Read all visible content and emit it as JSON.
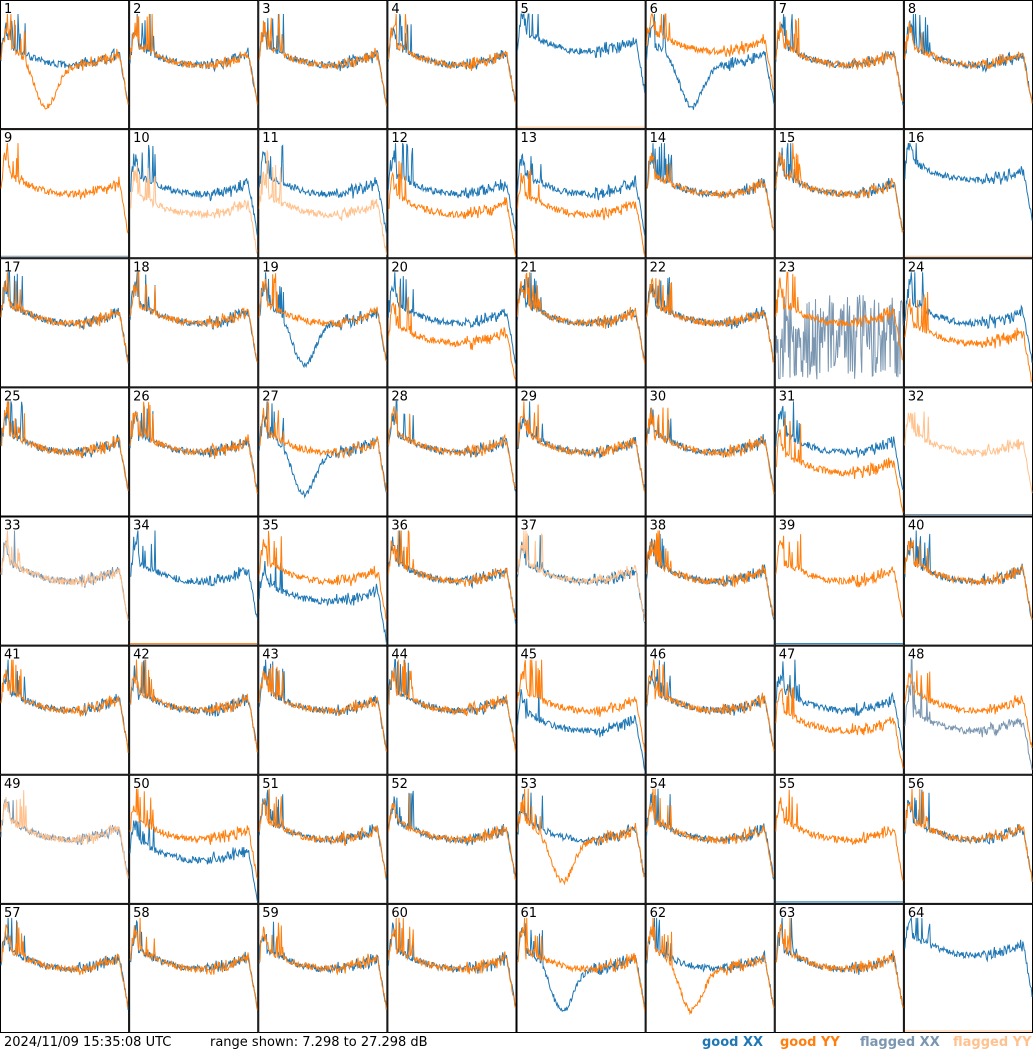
{
  "chart_data": {
    "type": "line",
    "description_units": "dB",
    "range": [
      7.298,
      27.298
    ],
    "colors": {
      "good_xx": "#1f77b4",
      "good_yy": "#ff7f0e",
      "flagged_xx": "#7a96b0",
      "flagged_yy": "#ffc28e"
    },
    "panels": [
      {
        "id": "1",
        "xx": "good",
        "yy": "good",
        "xx_shape": "standard",
        "yy_shape": "dip"
      },
      {
        "id": "2",
        "xx": "good",
        "yy": "good",
        "xx_shape": "standard",
        "yy_shape": "standard"
      },
      {
        "id": "3",
        "xx": "good",
        "yy": "good",
        "xx_shape": "standard",
        "yy_shape": "standard"
      },
      {
        "id": "4",
        "xx": "good",
        "yy": "good",
        "xx_shape": "standard",
        "yy_shape": "standard"
      },
      {
        "id": "5",
        "xx": "good",
        "yy": "flagged",
        "xx_shape": "high",
        "yy_shape": "dead"
      },
      {
        "id": "6",
        "xx": "good",
        "yy": "good",
        "xx_shape": "dip",
        "yy_shape": "high"
      },
      {
        "id": "7",
        "xx": "good",
        "yy": "good",
        "xx_shape": "standard",
        "yy_shape": "standard"
      },
      {
        "id": "8",
        "xx": "good",
        "yy": "good",
        "xx_shape": "standard",
        "yy_shape": "standard"
      },
      {
        "id": "9",
        "xx": "flagged",
        "yy": "good",
        "xx_shape": "dead",
        "yy_shape": "standard"
      },
      {
        "id": "10",
        "xx": "good",
        "yy": "flagged",
        "xx_shape": "standard",
        "yy_shape": "low"
      },
      {
        "id": "11",
        "xx": "good",
        "yy": "flagged",
        "xx_shape": "standard",
        "yy_shape": "low"
      },
      {
        "id": "12",
        "xx": "good",
        "yy": "good",
        "xx_shape": "standard",
        "yy_shape": "low"
      },
      {
        "id": "13",
        "xx": "good",
        "yy": "good",
        "xx_shape": "standard",
        "yy_shape": "low"
      },
      {
        "id": "14",
        "xx": "good",
        "yy": "good",
        "xx_shape": "standard",
        "yy_shape": "standard"
      },
      {
        "id": "15",
        "xx": "good",
        "yy": "good",
        "xx_shape": "standard",
        "yy_shape": "standard"
      },
      {
        "id": "16",
        "xx": "good",
        "yy": "flagged",
        "xx_shape": "high",
        "yy_shape": "dead"
      },
      {
        "id": "17",
        "xx": "good",
        "yy": "good",
        "xx_shape": "standard",
        "yy_shape": "standard"
      },
      {
        "id": "18",
        "xx": "good",
        "yy": "good",
        "xx_shape": "standard",
        "yy_shape": "standard"
      },
      {
        "id": "19",
        "xx": "good",
        "yy": "good",
        "xx_shape": "dip",
        "yy_shape": "standard"
      },
      {
        "id": "20",
        "xx": "good",
        "yy": "good",
        "xx_shape": "standard",
        "yy_shape": "low"
      },
      {
        "id": "21",
        "xx": "good",
        "yy": "good",
        "xx_shape": "standard",
        "yy_shape": "standard"
      },
      {
        "id": "22",
        "xx": "good",
        "yy": "good",
        "xx_shape": "standard",
        "yy_shape": "standard"
      },
      {
        "id": "23",
        "xx": "flagged",
        "yy": "good",
        "xx_shape": "noise",
        "yy_shape": "standard"
      },
      {
        "id": "24",
        "xx": "good",
        "yy": "good",
        "xx_shape": "standard",
        "yy_shape": "low"
      },
      {
        "id": "25",
        "xx": "good",
        "yy": "good",
        "xx_shape": "standard",
        "yy_shape": "standard"
      },
      {
        "id": "26",
        "xx": "good",
        "yy": "good",
        "xx_shape": "standard",
        "yy_shape": "standard"
      },
      {
        "id": "27",
        "xx": "good",
        "yy": "good",
        "xx_shape": "dip",
        "yy_shape": "standard"
      },
      {
        "id": "28",
        "xx": "good",
        "yy": "good",
        "xx_shape": "standard",
        "yy_shape": "standard"
      },
      {
        "id": "29",
        "xx": "good",
        "yy": "good",
        "xx_shape": "standard",
        "yy_shape": "standard"
      },
      {
        "id": "30",
        "xx": "good",
        "yy": "good",
        "xx_shape": "standard",
        "yy_shape": "standard"
      },
      {
        "id": "31",
        "xx": "good",
        "yy": "good",
        "xx_shape": "standard",
        "yy_shape": "low"
      },
      {
        "id": "32",
        "xx": "flagged",
        "yy": "flagged",
        "xx_shape": "dead",
        "yy_shape": "standard"
      },
      {
        "id": "33",
        "xx": "flagged",
        "yy": "flagged",
        "xx_shape": "standard",
        "yy_shape": "standard"
      },
      {
        "id": "34",
        "xx": "good",
        "yy": "good",
        "xx_shape": "standard",
        "yy_shape": "dead"
      },
      {
        "id": "35",
        "xx": "good",
        "yy": "good",
        "xx_shape": "low",
        "yy_shape": "standard"
      },
      {
        "id": "36",
        "xx": "good",
        "yy": "good",
        "xx_shape": "standard",
        "yy_shape": "standard"
      },
      {
        "id": "37",
        "xx": "good",
        "yy": "flagged",
        "xx_shape": "standard",
        "yy_shape": "standard"
      },
      {
        "id": "38",
        "xx": "good",
        "yy": "good",
        "xx_shape": "standard",
        "yy_shape": "standard"
      },
      {
        "id": "39",
        "xx": "good",
        "yy": "good",
        "xx_shape": "dead",
        "yy_shape": "standard"
      },
      {
        "id": "40",
        "xx": "good",
        "yy": "good",
        "xx_shape": "standard",
        "yy_shape": "standard"
      },
      {
        "id": "41",
        "xx": "good",
        "yy": "good",
        "xx_shape": "standard",
        "yy_shape": "standard"
      },
      {
        "id": "42",
        "xx": "good",
        "yy": "good",
        "xx_shape": "standard",
        "yy_shape": "standard"
      },
      {
        "id": "43",
        "xx": "good",
        "yy": "good",
        "xx_shape": "standard",
        "yy_shape": "standard"
      },
      {
        "id": "44",
        "xx": "good",
        "yy": "good",
        "xx_shape": "standard",
        "yy_shape": "standard"
      },
      {
        "id": "45",
        "xx": "good",
        "yy": "good",
        "xx_shape": "low",
        "yy_shape": "standard"
      },
      {
        "id": "46",
        "xx": "good",
        "yy": "good",
        "xx_shape": "standard",
        "yy_shape": "standard"
      },
      {
        "id": "47",
        "xx": "good",
        "yy": "good",
        "xx_shape": "standard",
        "yy_shape": "low"
      },
      {
        "id": "48",
        "xx": "flagged",
        "yy": "good",
        "xx_shape": "low",
        "yy_shape": "standard"
      },
      {
        "id": "49",
        "xx": "flagged",
        "yy": "flagged",
        "xx_shape": "standard",
        "yy_shape": "standard"
      },
      {
        "id": "50",
        "xx": "good",
        "yy": "good",
        "xx_shape": "low",
        "yy_shape": "standard"
      },
      {
        "id": "51",
        "xx": "good",
        "yy": "good",
        "xx_shape": "standard",
        "yy_shape": "standard"
      },
      {
        "id": "52",
        "xx": "good",
        "yy": "good",
        "xx_shape": "standard",
        "yy_shape": "standard"
      },
      {
        "id": "53",
        "xx": "good",
        "yy": "good",
        "xx_shape": "standard",
        "yy_shape": "dip"
      },
      {
        "id": "54",
        "xx": "good",
        "yy": "good",
        "xx_shape": "standard",
        "yy_shape": "standard"
      },
      {
        "id": "55",
        "xx": "good",
        "yy": "good",
        "xx_shape": "dead",
        "yy_shape": "standard"
      },
      {
        "id": "56",
        "xx": "good",
        "yy": "good",
        "xx_shape": "standard",
        "yy_shape": "standard"
      },
      {
        "id": "57",
        "xx": "good",
        "yy": "good",
        "xx_shape": "standard",
        "yy_shape": "standard"
      },
      {
        "id": "58",
        "xx": "good",
        "yy": "good",
        "xx_shape": "standard",
        "yy_shape": "standard"
      },
      {
        "id": "59",
        "xx": "good",
        "yy": "good",
        "xx_shape": "standard",
        "yy_shape": "standard"
      },
      {
        "id": "60",
        "xx": "good",
        "yy": "good",
        "xx_shape": "standard",
        "yy_shape": "standard"
      },
      {
        "id": "61",
        "xx": "good",
        "yy": "good",
        "xx_shape": "dip",
        "yy_shape": "standard"
      },
      {
        "id": "62",
        "xx": "good",
        "yy": "good",
        "xx_shape": "standard",
        "yy_shape": "dip"
      },
      {
        "id": "63",
        "xx": "good",
        "yy": "good",
        "xx_shape": "standard",
        "yy_shape": "standard"
      },
      {
        "id": "64",
        "xx": "good",
        "yy": "flagged",
        "xx_shape": "high",
        "yy_shape": "dead"
      }
    ]
  },
  "footer": {
    "timestamp": "2024/11/09 15:35:08 UTC",
    "range_text": "range shown: 7.298 to 27.298 dB",
    "legend": {
      "good_xx": "good XX",
      "good_yy": "good YY",
      "flagged_xx": "flagged XX",
      "flagged_yy": "flagged YY"
    }
  }
}
